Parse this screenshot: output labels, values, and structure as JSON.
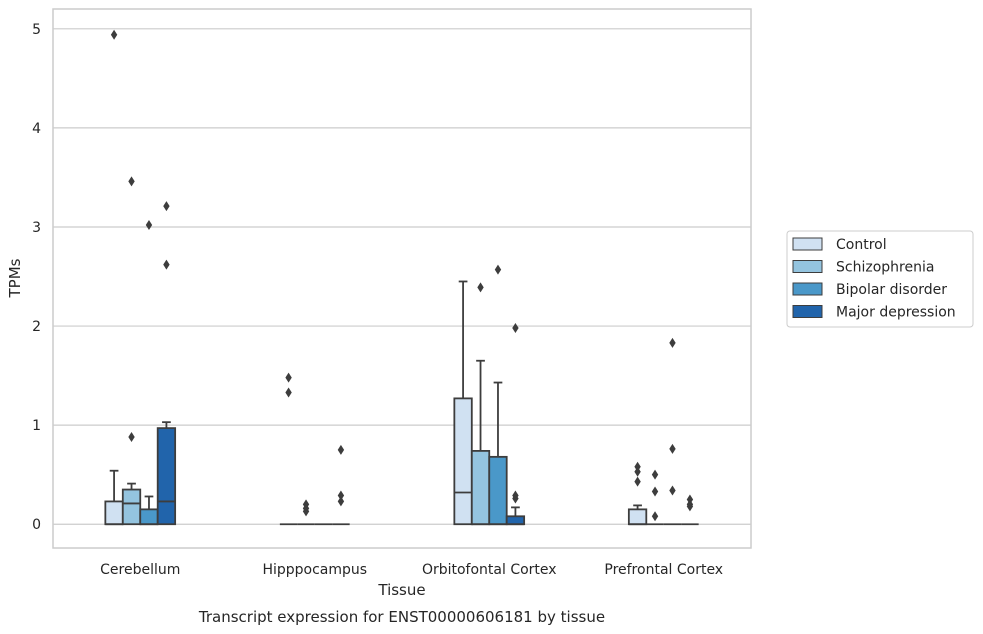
{
  "chart_data": {
    "type": "box",
    "caption": "Transcript expression for ENST00000606181 by tissue",
    "xlabel": "Tissue",
    "ylabel": "TPMs",
    "ylim": [
      -0.24,
      5.2
    ],
    "yticks": [
      0,
      1,
      2,
      3,
      4,
      5
    ],
    "grid": true,
    "legend_position": "center-right",
    "categories": [
      "Cerebellum",
      "Hipppocampus",
      "Orbitofontal Cortex",
      "Prefrontal Cortex"
    ],
    "series": [
      {
        "name": "Control",
        "color": "#d0e1f2",
        "boxes": [
          {
            "q1": 0.0,
            "median": 0.0,
            "q3": 0.23,
            "whisker_low": 0.0,
            "whisker_high": 0.54,
            "outliers": [
              4.94
            ]
          },
          {
            "q1": 0.0,
            "median": 0.0,
            "q3": 0.0,
            "whisker_low": 0.0,
            "whisker_high": 0.0,
            "outliers": [
              1.48,
              1.33
            ]
          },
          {
            "q1": 0.0,
            "median": 0.32,
            "q3": 1.27,
            "whisker_low": 0.0,
            "whisker_high": 2.45,
            "outliers": []
          },
          {
            "q1": 0.0,
            "median": 0.0,
            "q3": 0.15,
            "whisker_low": 0.0,
            "whisker_high": 0.19,
            "outliers": [
              0.58,
              0.53,
              0.43
            ]
          }
        ]
      },
      {
        "name": "Schizophrenia",
        "color": "#94c4df",
        "boxes": [
          {
            "q1": 0.0,
            "median": 0.21,
            "q3": 0.35,
            "whisker_low": 0.0,
            "whisker_high": 0.41,
            "outliers": [
              3.46,
              0.88
            ]
          },
          {
            "q1": 0.0,
            "median": 0.0,
            "q3": 0.0,
            "whisker_low": 0.0,
            "whisker_high": 0.0,
            "outliers": [
              0.2,
              0.16,
              0.13
            ]
          },
          {
            "q1": 0.0,
            "median": 0.0,
            "q3": 0.74,
            "whisker_low": 0.0,
            "whisker_high": 1.65,
            "outliers": [
              2.39
            ]
          },
          {
            "q1": 0.0,
            "median": 0.0,
            "q3": 0.0,
            "whisker_low": 0.0,
            "whisker_high": 0.0,
            "outliers": [
              0.5,
              0.33,
              0.08
            ]
          }
        ]
      },
      {
        "name": "Bipolar disorder",
        "color": "#4a98c9",
        "boxes": [
          {
            "q1": 0.0,
            "median": 0.0,
            "q3": 0.15,
            "whisker_low": 0.0,
            "whisker_high": 0.28,
            "outliers": [
              3.02
            ]
          },
          {
            "q1": 0.0,
            "median": 0.0,
            "q3": 0.0,
            "whisker_low": 0.0,
            "whisker_high": 0.0,
            "outliers": []
          },
          {
            "q1": 0.0,
            "median": 0.0,
            "q3": 0.68,
            "whisker_low": 0.0,
            "whisker_high": 1.43,
            "outliers": [
              2.57
            ]
          },
          {
            "q1": 0.0,
            "median": 0.0,
            "q3": 0.0,
            "whisker_low": 0.0,
            "whisker_high": 0.0,
            "outliers": [
              1.83,
              0.76,
              0.34
            ]
          }
        ]
      },
      {
        "name": "Major depression",
        "color": "#2164ab",
        "boxes": [
          {
            "q1": 0.0,
            "median": 0.23,
            "q3": 0.97,
            "whisker_low": 0.0,
            "whisker_high": 1.03,
            "outliers": [
              3.21,
              2.62
            ]
          },
          {
            "q1": 0.0,
            "median": 0.0,
            "q3": 0.0,
            "whisker_low": 0.0,
            "whisker_high": 0.0,
            "outliers": [
              0.75,
              0.29,
              0.23
            ]
          },
          {
            "q1": 0.0,
            "median": 0.0,
            "q3": 0.08,
            "whisker_low": 0.0,
            "whisker_high": 0.17,
            "outliers": [
              1.98,
              0.29,
              0.26
            ]
          },
          {
            "q1": 0.0,
            "median": 0.0,
            "q3": 0.0,
            "whisker_low": 0.0,
            "whisker_high": 0.0,
            "outliers": [
              0.25,
              0.2,
              0.18
            ]
          }
        ]
      }
    ]
  }
}
